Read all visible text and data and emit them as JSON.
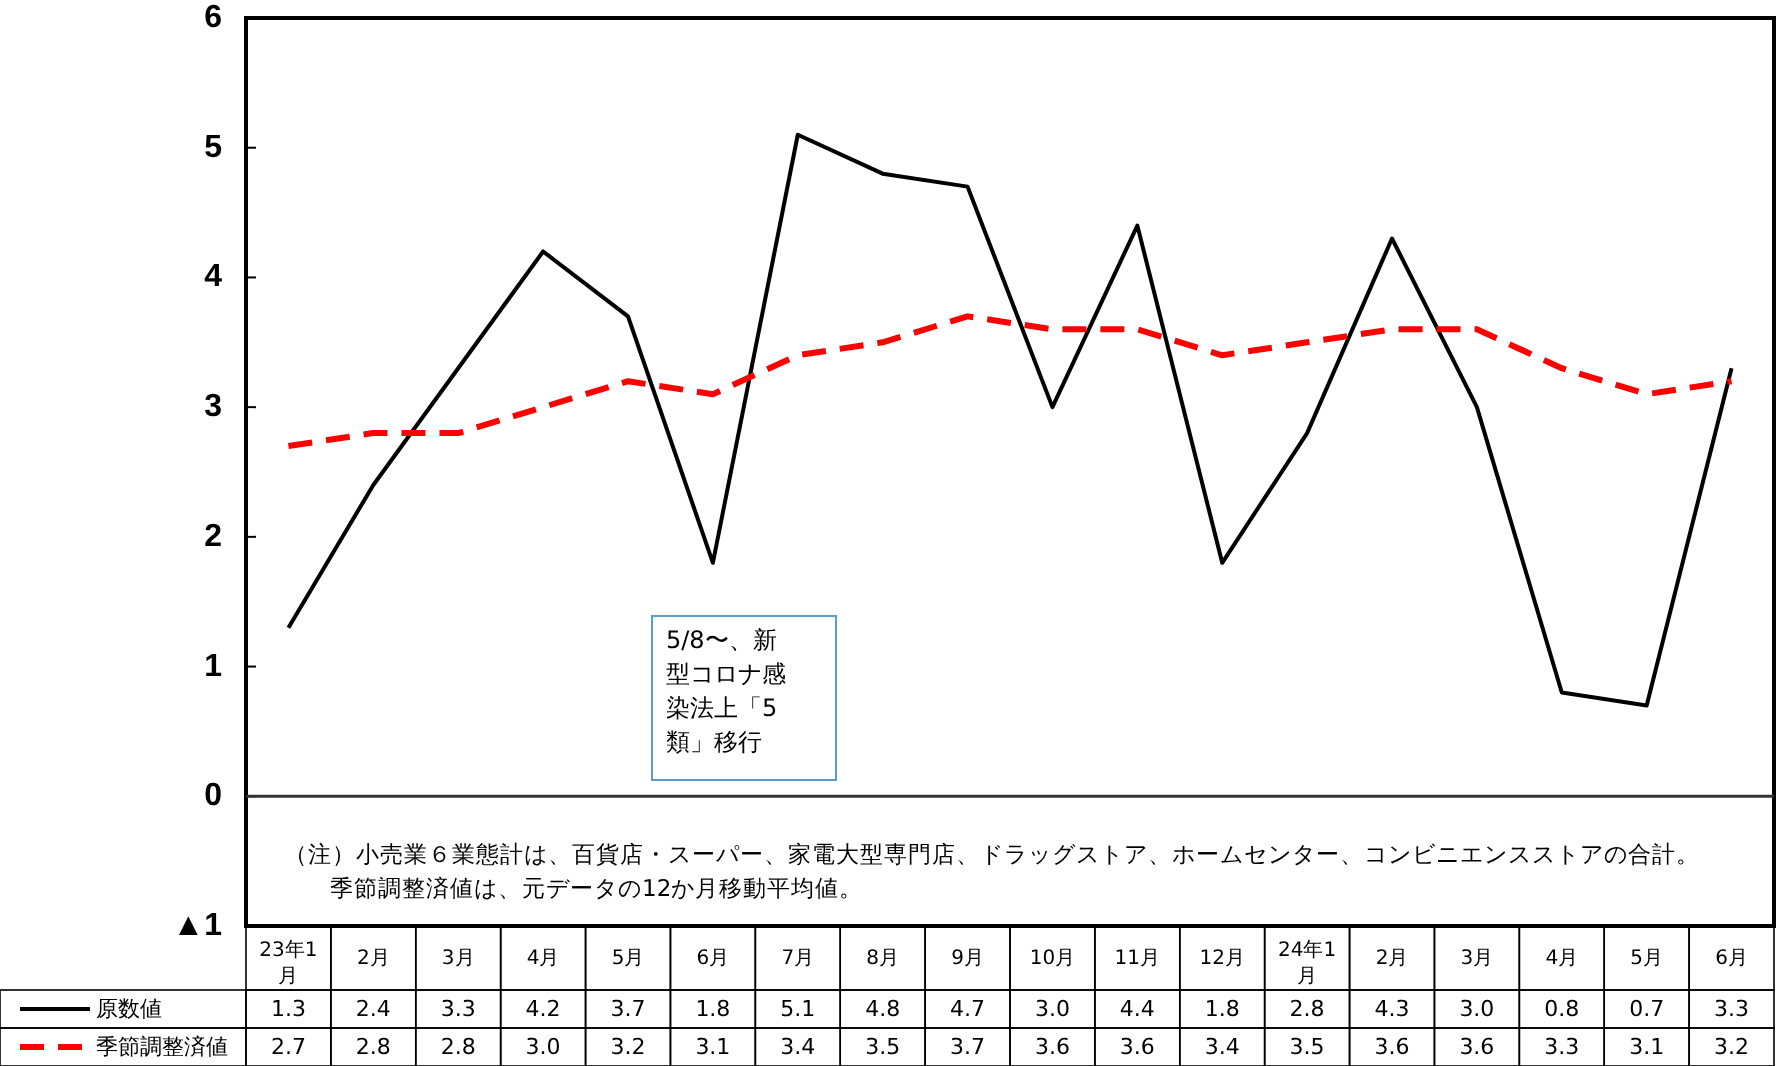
{
  "chart_data": {
    "type": "line",
    "categories": [
      "23年1月",
      "2月",
      "3月",
      "4月",
      "5月",
      "6月",
      "7月",
      "8月",
      "9月",
      "10月",
      "11月",
      "12月",
      "24年1月",
      "2月",
      "3月",
      "4月",
      "5月",
      "6月"
    ],
    "series": [
      {
        "name": "原数値",
        "color": "#000000",
        "line_style": "solid",
        "values": [
          1.3,
          2.4,
          3.3,
          4.2,
          3.7,
          1.8,
          5.1,
          4.8,
          4.7,
          3.0,
          4.4,
          1.8,
          2.8,
          4.3,
          3.0,
          0.8,
          0.7,
          3.3
        ],
        "value_labels": [
          "1.3",
          "2.4",
          "3.3",
          "4.2",
          "3.7",
          "1.8",
          "5.1",
          "4.8",
          "4.7",
          "3.0",
          "4.4",
          "1.8",
          "2.8",
          "4.3",
          "3.0",
          "0.8",
          "0.7",
          "3.3"
        ]
      },
      {
        "name": "季節調整済値",
        "color": "#ff0000",
        "line_style": "dashed",
        "values": [
          2.7,
          2.8,
          2.8,
          3.0,
          3.2,
          3.1,
          3.4,
          3.5,
          3.7,
          3.6,
          3.6,
          3.4,
          3.5,
          3.6,
          3.6,
          3.3,
          3.1,
          3.2
        ],
        "value_labels": [
          "2.7",
          "2.8",
          "2.8",
          "3.0",
          "3.2",
          "3.1",
          "3.4",
          "3.5",
          "3.7",
          "3.6",
          "3.6",
          "3.4",
          "3.5",
          "3.6",
          "3.6",
          "3.3",
          "3.1",
          "3.2"
        ]
      }
    ],
    "ylim": [
      -1,
      6
    ],
    "yticks": [
      {
        "value": -1,
        "label": "▲1"
      },
      0,
      1,
      2,
      3,
      4,
      5,
      6
    ],
    "ref_lines": [
      {
        "axis": "y",
        "value": 0
      }
    ],
    "legend": "bottom left",
    "grid": false,
    "annotations": [
      "5/8〜、新型コロナ感染法上「5類」移行",
      "（注）小売業６業態計は、百貨店・スーパー、家電大型専門店、ドラッグストア、ホームセンター、コンビニエンスストアの合計。",
      "季節調整済値は、元データの12か月移動平均値。"
    ]
  }
}
